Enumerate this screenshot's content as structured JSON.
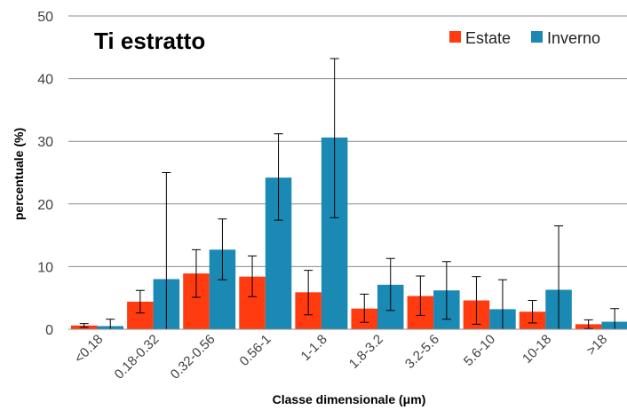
{
  "chart_data": {
    "type": "bar",
    "title": "Ti estratto",
    "xlabel": "Classe dimensionale (μm)",
    "ylabel": "percentuale (%)",
    "ylim": [
      0,
      50
    ],
    "yticks": [
      "0",
      "10",
      "20",
      "30",
      "40",
      "50"
    ],
    "grid": true,
    "legend": "top-right",
    "categories": [
      "<0.18",
      "0.18-0.32",
      "0.32-0.56",
      "0.56-1",
      "1-1.8",
      "1.8-3.2",
      "3.2-5.6",
      "5.6-10",
      "10-18",
      ">18"
    ],
    "series": [
      {
        "name": "Estate",
        "color": "#ff3b0f",
        "values": [
          0.6,
          4.4,
          8.9,
          8.4,
          5.9,
          3.3,
          5.3,
          4.6,
          2.8,
          0.8
        ],
        "err_low": [
          0.3,
          2.6,
          5.1,
          5.2,
          2.3,
          1.1,
          2.2,
          0.8,
          1.0,
          0.1
        ],
        "err_high": [
          0.9,
          6.2,
          12.7,
          11.7,
          9.4,
          5.6,
          8.5,
          8.4,
          4.6,
          1.5
        ]
      },
      {
        "name": "Inverno",
        "color": "#1a89b3",
        "values": [
          0.5,
          8.0,
          12.7,
          24.2,
          30.6,
          7.1,
          6.2,
          3.2,
          6.3,
          1.2
        ],
        "err_low": [
          0.0,
          0.0,
          7.9,
          17.4,
          17.8,
          3.0,
          1.6,
          0.0,
          0.0,
          0.0
        ],
        "err_high": [
          1.6,
          25.0,
          17.6,
          31.2,
          43.2,
          11.3,
          10.8,
          7.9,
          16.5,
          3.3
        ]
      }
    ]
  }
}
